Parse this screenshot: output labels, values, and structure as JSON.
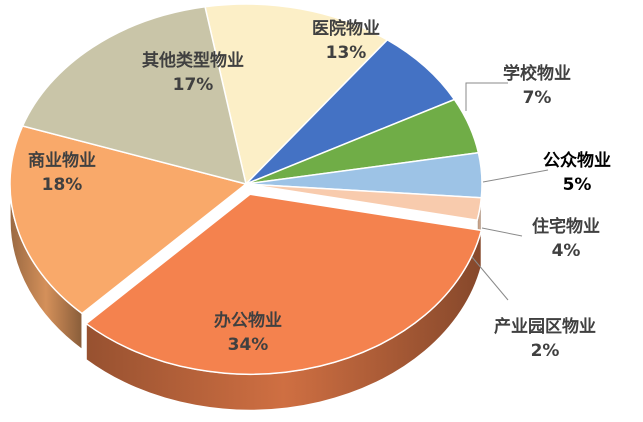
{
  "chart_data": {
    "type": "pie",
    "style": "3d",
    "slices": [
      {
        "label": "医院物业",
        "percent_label": "13%",
        "value": 13,
        "color": "#FCEFC7"
      },
      {
        "label": "学校物业",
        "percent_label": "7%",
        "value": 7,
        "color": "#4472C4"
      },
      {
        "label": "公众物业",
        "percent_label": "5%",
        "value": 5,
        "color": "#70AD47"
      },
      {
        "label": "住宅物业",
        "percent_label": "4%",
        "value": 4,
        "color": "#9DC3E6"
      },
      {
        "label": "产业园区物业",
        "percent_label": "2%",
        "value": 2,
        "color": "#F8CBAD"
      },
      {
        "label": "办公物业",
        "percent_label": "34%",
        "value": 34,
        "color": "#F4824E"
      },
      {
        "label": "商业物业",
        "percent_label": "18%",
        "value": 18,
        "color": "#F9A96A"
      },
      {
        "label": "其他类型物业",
        "percent_label": "17%",
        "value": 17,
        "color": "#C9C5A8"
      }
    ]
  }
}
